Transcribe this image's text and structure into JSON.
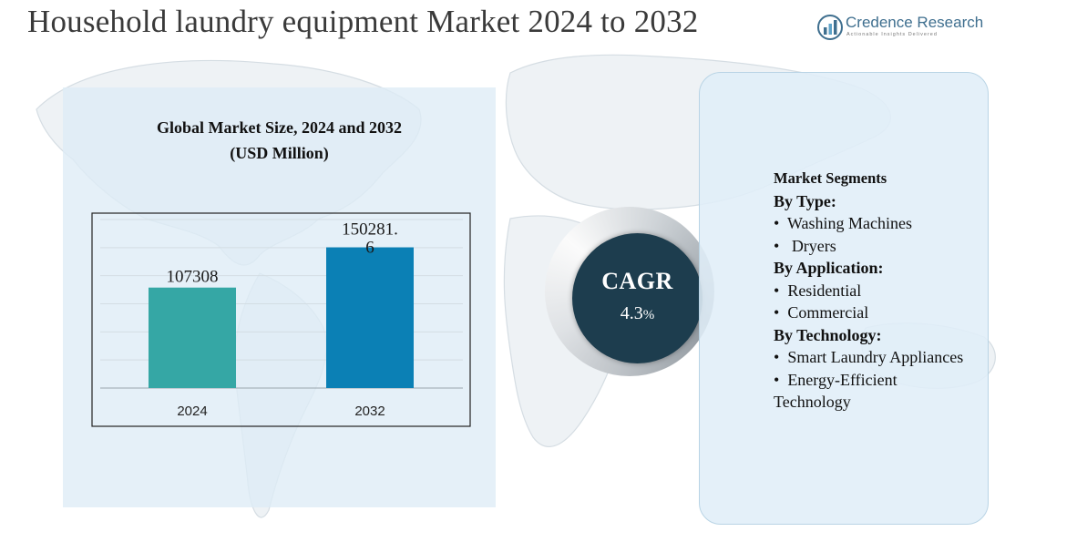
{
  "header": {
    "title": "Household laundry equipment Market 2024 to 2032"
  },
  "logo": {
    "name": "Credence Research",
    "tagline": "Actionable Insights Delivered",
    "icon": "bar-chart-logo-icon"
  },
  "colors": {
    "bar_2024": "#35a7a5",
    "bar_2032": "#0b80b5",
    "cagr_circle": "#1d3d4e",
    "panel": "#deecf6"
  },
  "chart_data": {
    "type": "bar",
    "title": "Global Market Size, 2024 and 2032",
    "subtitle": "(USD Million)",
    "categories": [
      "2024",
      "2032"
    ],
    "values": [
      107308,
      150281.6
    ],
    "value_labels": [
      "107308",
      "150281.6"
    ],
    "xlabel": "",
    "ylabel": "",
    "ylim": [
      0,
      180000
    ],
    "grid": true
  },
  "cagr": {
    "label": "CAGR",
    "value": "4.3",
    "unit": "%"
  },
  "segments": {
    "title": "Market Segments",
    "groups": [
      {
        "heading": "By Type:",
        "items": [
          "Washing Machines",
          "Dryers"
        ]
      },
      {
        "heading": "By Application:",
        "items": [
          "Residential",
          "Commercial"
        ]
      },
      {
        "heading": "By Technology:",
        "items": [
          "Smart Laundry Appliances",
          "Energy-Efficient Technology"
        ]
      }
    ]
  }
}
